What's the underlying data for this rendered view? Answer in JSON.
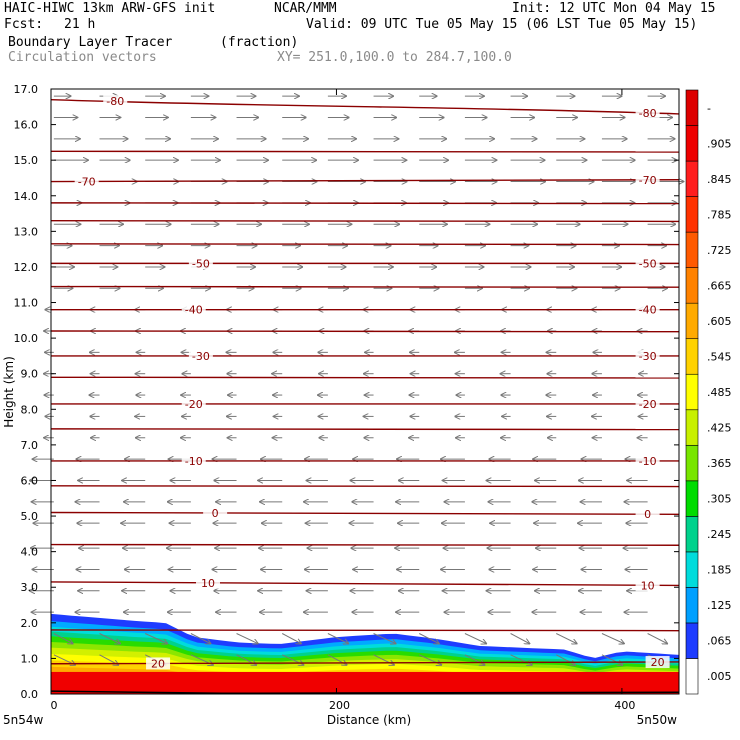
{
  "header": {
    "model": "HAIC-HIWC 13km ARW-GFS init",
    "org": "NCAR/MMM",
    "init": "Init: 12 UTC Mon 04 May 15",
    "fcst_label": "Fcst:",
    "fcst_value": "21 h",
    "valid": "Valid: 09 UTC Tue 05 May 15 (06 LST Tue 05 May 15)",
    "field_name": "Boundary Layer Tracer",
    "field_units": "(fraction)",
    "vector_name": "Circulation vectors",
    "xy_range": "XY= 251.0,100.0 to 284.7,100.0"
  },
  "chart_data": {
    "type": "area",
    "ylabel": "Height (km)",
    "xlabel": "Distance (km)",
    "ylim": [
      0,
      17
    ],
    "xlim": [
      0,
      440
    ],
    "y_ticks": [
      "0.0",
      "1.0",
      "2.0",
      "3.0",
      "4.0",
      "5.0",
      "6.0",
      "7.0",
      "8.0",
      "9.0",
      "10.0",
      "11.0",
      "12.0",
      "13.0",
      "14.0",
      "15.0",
      "16.0",
      "17.0"
    ],
    "x_ticks": [
      {
        "value": 0,
        "label": "0"
      },
      {
        "value": 200,
        "label": "200"
      },
      {
        "value": 400,
        "label": "400"
      }
    ],
    "x_end_labels": {
      "left": "5n54w",
      "right": "5n50w"
    },
    "colorbar": {
      "labels": [
        ".005",
        ".065",
        ".125",
        ".185",
        ".245",
        ".305",
        ".365",
        ".425",
        ".485",
        ".545",
        ".605",
        ".665",
        ".725",
        ".785",
        ".845",
        ".905",
        "-"
      ],
      "colors": [
        "#ffffff",
        "#1e3cff",
        "#00a0ff",
        "#00dcdc",
        "#00d28c",
        "#00dc00",
        "#78e600",
        "#c8f000",
        "#ffff00",
        "#ffd200",
        "#ffaa00",
        "#ff8200",
        "#ff5a00",
        "#ff3200",
        "#ff1e1e",
        "#ee0000",
        "#dd0000"
      ]
    },
    "tracer_top_km": [
      {
        "x": 0,
        "y": 2.25
      },
      {
        "x": 30,
        "y": 2.15
      },
      {
        "x": 60,
        "y": 2.05
      },
      {
        "x": 80,
        "y": 2.0
      },
      {
        "x": 100,
        "y": 1.6
      },
      {
        "x": 130,
        "y": 1.45
      },
      {
        "x": 160,
        "y": 1.4
      },
      {
        "x": 200,
        "y": 1.6
      },
      {
        "x": 240,
        "y": 1.7
      },
      {
        "x": 270,
        "y": 1.55
      },
      {
        "x": 300,
        "y": 1.35
      },
      {
        "x": 330,
        "y": 1.3
      },
      {
        "x": 360,
        "y": 1.25
      },
      {
        "x": 380,
        "y": 1.0
      },
      {
        "x": 400,
        "y": 1.2
      },
      {
        "x": 440,
        "y": 1.1
      }
    ],
    "temperature_contours": [
      {
        "label": "20",
        "y_left": 0.85,
        "y_right": 0.9,
        "label_left_x": 75,
        "label_right_x": 425
      },
      {
        "label": "10",
        "y_left": 3.15,
        "y_right": 3.05,
        "label_left_x": 110,
        "label_right_x": 418
      },
      {
        "label": "0",
        "y_left": 5.1,
        "y_right": 5.05,
        "label_left_x": 115,
        "label_right_x": 418
      },
      {
        "label": "-10",
        "y_left": 6.55,
        "y_right": 6.55,
        "label_left_x": 100,
        "label_right_x": 418
      },
      {
        "label": "-20",
        "y_left": 8.15,
        "y_right": 8.15,
        "label_left_x": 100,
        "label_right_x": 418
      },
      {
        "label": "-30",
        "y_left": 9.5,
        "y_right": 9.5,
        "label_left_x": 105,
        "label_right_x": 418
      },
      {
        "label": "-40",
        "y_left": 10.8,
        "y_right": 10.8,
        "label_left_x": 100,
        "label_right_x": 418
      },
      {
        "label": "-50",
        "y_left": 12.1,
        "y_right": 12.1,
        "label_left_x": 105,
        "label_right_x": 418
      },
      {
        "label": "-70",
        "y_left": 14.4,
        "y_right": 14.45,
        "label_left_x": 25,
        "label_right_x": 418
      },
      {
        "label": "-80",
        "y_left": 16.7,
        "y_right": 16.3,
        "label_left_x": 45,
        "label_right_x": 418
      }
    ],
    "unlabeled_contours_km": [
      1.8,
      4.2,
      5.85,
      7.45,
      8.9,
      10.2,
      11.45,
      12.65,
      13.3,
      13.8,
      15.25
    ]
  }
}
